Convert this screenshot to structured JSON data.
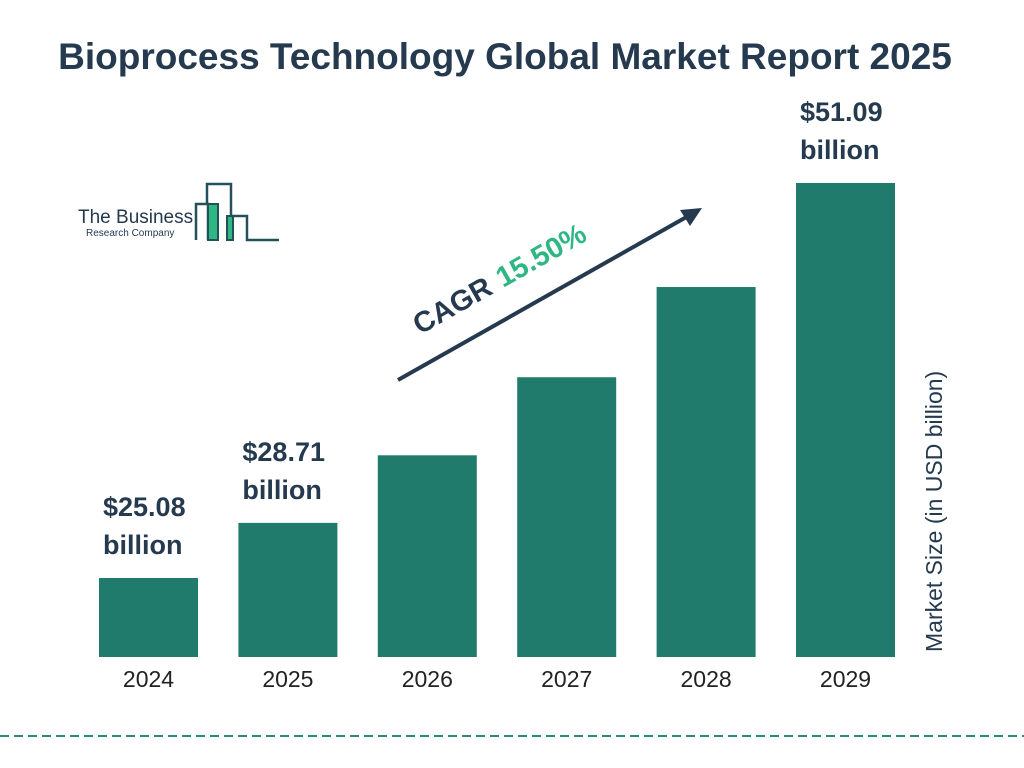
{
  "chart_data": {
    "type": "bar",
    "title": "Bioprocess Technology Global Market Report 2025",
    "categories": [
      "2024",
      "2025",
      "2026",
      "2027",
      "2028",
      "2029"
    ],
    "values": [
      25.08,
      28.71,
      33.16,
      38.3,
      44.24,
      51.09
    ],
    "data_labels": [
      {
        "index": 0,
        "line1": "$25.08",
        "line2": "billion"
      },
      {
        "index": 1,
        "line1": "$28.71",
        "line2": "billion"
      },
      {
        "index": 5,
        "line1": "$51.09",
        "line2": "billion"
      }
    ],
    "ylabel": "Market Size (in USD billion)",
    "xlabel": "",
    "annotation": {
      "prefix": "CAGR",
      "value": "15.50%"
    },
    "grid": false,
    "colors": {
      "bar": "#217b6c",
      "title": "#253a4f",
      "cagr": "#2fb783",
      "dash": "#2a8a80"
    }
  },
  "logo": {
    "line1": "The Business",
    "line2": "Research Company"
  }
}
